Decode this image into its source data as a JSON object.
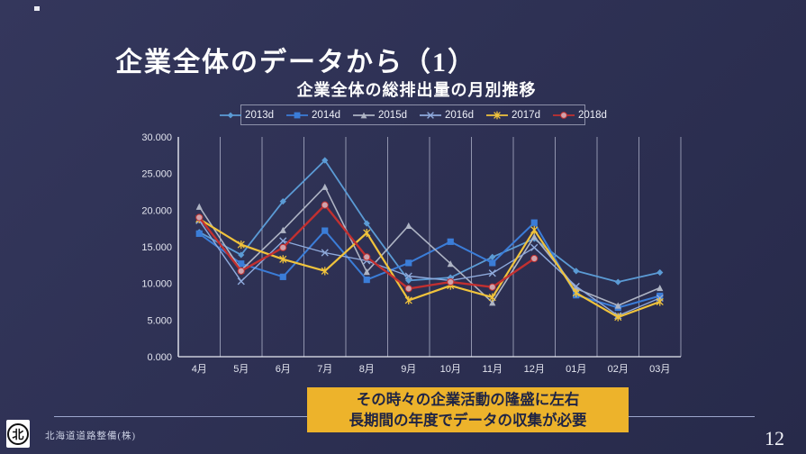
{
  "slide": {
    "title": "企業全体のデータから（1）",
    "page_number": "12",
    "footer_company": "北海道道路整備(株)",
    "logo_glyph": "北",
    "background_color": "#2e3154",
    "banner": {
      "bg_color": "#edb32b",
      "text_color": "#1f2444",
      "lines": [
        "その時々の企業活動の隆盛に左右",
        "長期間の年度でデータの収集が必要"
      ]
    }
  },
  "chart_data": {
    "type": "line",
    "title": "企業全体の総排出量の月別推移",
    "categories": [
      "4月",
      "5月",
      "6月",
      "7月",
      "8月",
      "9月",
      "10月",
      "11月",
      "12月",
      "01月",
      "02月",
      "03月"
    ],
    "y_ticks": [
      "0.000",
      "5.000",
      "10.000",
      "15.000",
      "20.000",
      "25.000",
      "30.000"
    ],
    "ylim": [
      0,
      30
    ],
    "grid": "vertical-category-lines",
    "legend_position": "top",
    "series": [
      {
        "name": "2013d",
        "color": "#5b9bd5",
        "marker": "diamond",
        "width": 1.8,
        "values": [
          17.0,
          13.9,
          21.2,
          26.8,
          18.2,
          10.4,
          10.8,
          13.6,
          16.1,
          11.7,
          10.2,
          11.5
        ]
      },
      {
        "name": "2014d",
        "color": "#3b7dd8",
        "marker": "square",
        "width": 2.0,
        "values": [
          16.8,
          12.7,
          10.9,
          17.2,
          10.5,
          12.8,
          15.7,
          12.8,
          18.3,
          8.4,
          6.7,
          8.3
        ]
      },
      {
        "name": "2015d",
        "color": "#aeb4c4",
        "marker": "triangle",
        "width": 1.6,
        "values": [
          20.5,
          11.8,
          17.3,
          23.2,
          11.6,
          17.9,
          12.7,
          7.4,
          16.4,
          9.3,
          7.0,
          9.4
        ]
      },
      {
        "name": "2016d",
        "color": "#8faadc",
        "marker": "x",
        "width": 1.4,
        "values": [
          18.6,
          10.3,
          15.8,
          14.2,
          13.1,
          11.0,
          10.4,
          11.4,
          14.9,
          9.6,
          5.6,
          8.0
        ]
      },
      {
        "name": "2017d",
        "color": "#f0c33c",
        "marker": "star",
        "width": 2.2,
        "values": [
          18.8,
          15.3,
          13.3,
          11.7,
          16.9,
          7.7,
          9.7,
          8.1,
          17.3,
          8.7,
          5.4,
          7.5
        ]
      },
      {
        "name": "2018d",
        "color": "#c23030",
        "marker": "circle",
        "marker_fill": "#cfa2ab",
        "width": 2.4,
        "values": [
          19.0,
          11.7,
          14.9,
          20.7,
          13.6,
          9.3,
          10.2,
          9.5,
          13.4,
          null,
          null,
          null
        ]
      }
    ]
  }
}
